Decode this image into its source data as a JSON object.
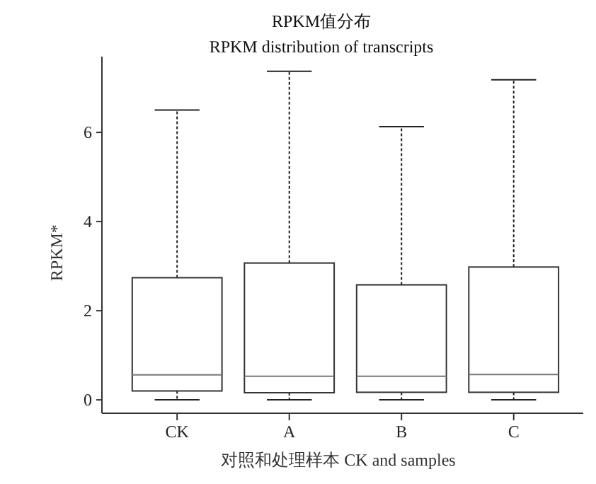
{
  "chart_data": {
    "type": "box",
    "title": "RPKM值分布",
    "subtitle": "RPKM distribution of transcripts",
    "xlabel": "对照和处理样本 CK and samples",
    "ylabel": "RPKM*",
    "categories": [
      "CK",
      "A",
      "B",
      "C"
    ],
    "boxes": [
      {
        "low": 0,
        "q1": 0.2,
        "median": 0.56,
        "q3": 2.74,
        "high": 6.5
      },
      {
        "low": 0,
        "q1": 0.16,
        "median": 0.53,
        "q3": 3.07,
        "high": 7.37
      },
      {
        "low": 0,
        "q1": 0.17,
        "median": 0.53,
        "q3": 2.58,
        "high": 6.13
      },
      {
        "low": 0,
        "q1": 0.17,
        "median": 0.57,
        "q3": 2.98,
        "high": 7.18
      }
    ],
    "ylim": [
      -0.3,
      7.7
    ],
    "yticks": [
      0,
      2,
      4,
      6
    ]
  }
}
